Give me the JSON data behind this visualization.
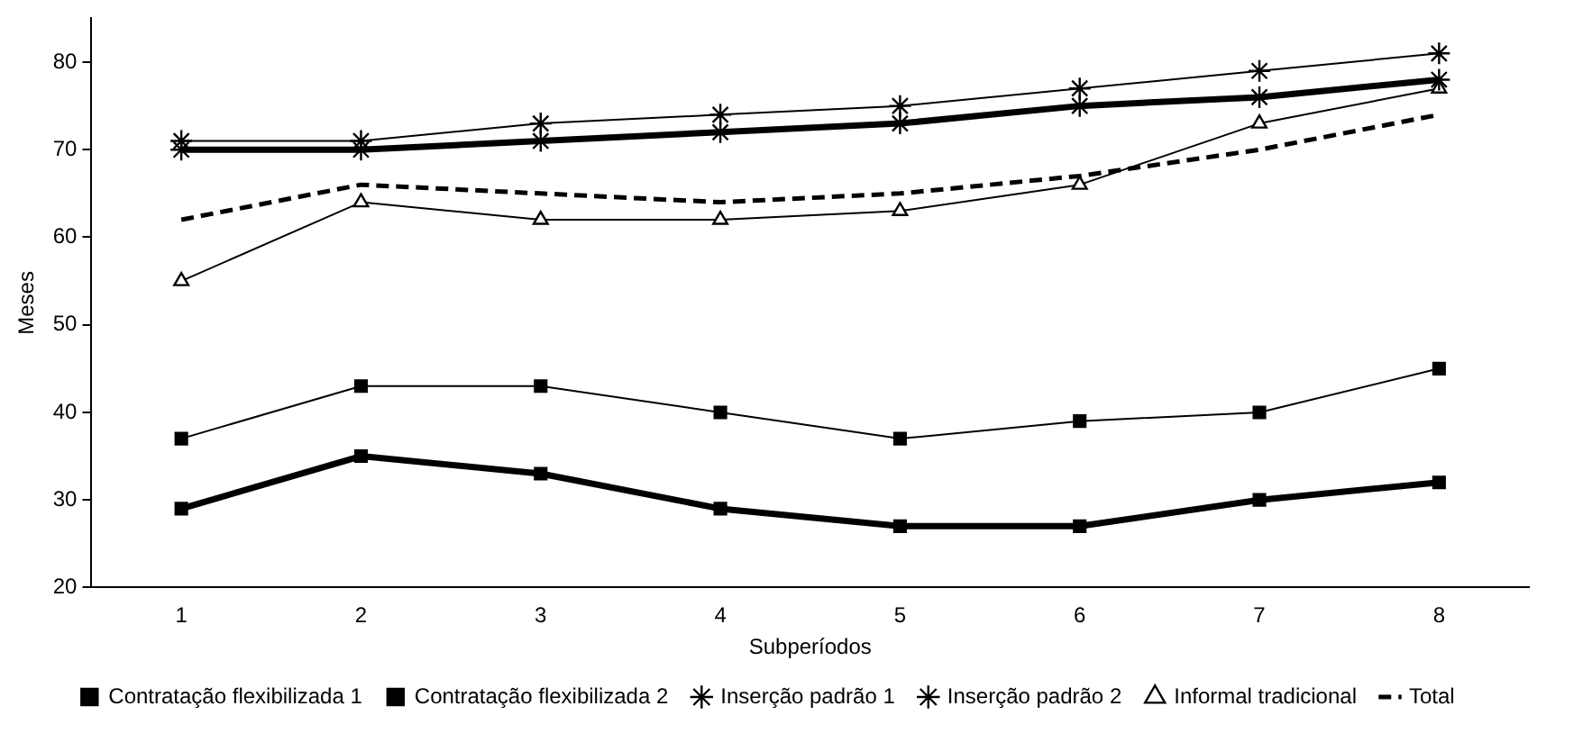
{
  "chart_data": {
    "type": "line",
    "xlabel": "Subperíodos",
    "ylabel": "Meses",
    "categories": [
      "1",
      "2",
      "3",
      "4",
      "5",
      "6",
      "7",
      "8"
    ],
    "ylim": [
      20,
      85
    ],
    "yticks": [
      20,
      30,
      40,
      50,
      60,
      70,
      80
    ],
    "grid": false,
    "legend": "bottom",
    "series": [
      {
        "name": "Contratação flexibilizada 1",
        "color": "#000000",
        "marker": "square",
        "line_style": "solid",
        "values": [
          37,
          43,
          43,
          40,
          37,
          39,
          40,
          45
        ]
      },
      {
        "name": "Contratação flexibilizada 2",
        "color": "#000000",
        "marker": "square",
        "line_style": "solid",
        "values": [
          29,
          35,
          33,
          29,
          27,
          27,
          30,
          32
        ]
      },
      {
        "name": "Inserção padrão 1",
        "color": "#000000",
        "marker": "cross",
        "line_style": "solid",
        "values": [
          71,
          71,
          73,
          74,
          75,
          77,
          79,
          81
        ]
      },
      {
        "name": "Inserção padrão 2",
        "color": "#000000",
        "marker": "cross",
        "line_style": "solid",
        "values": [
          70,
          70,
          71,
          72,
          73,
          75,
          76,
          78
        ]
      },
      {
        "name": "Informal tradicional",
        "color": "#000000",
        "marker": "triangle",
        "line_style": "solid",
        "values": [
          55,
          64,
          62,
          62,
          63,
          66,
          73,
          77
        ]
      },
      {
        "name": "Total",
        "color": "#000000",
        "marker": "none",
        "line_style": "dashed",
        "values": [
          62,
          66,
          65,
          64,
          65,
          67,
          70,
          74
        ]
      }
    ]
  }
}
